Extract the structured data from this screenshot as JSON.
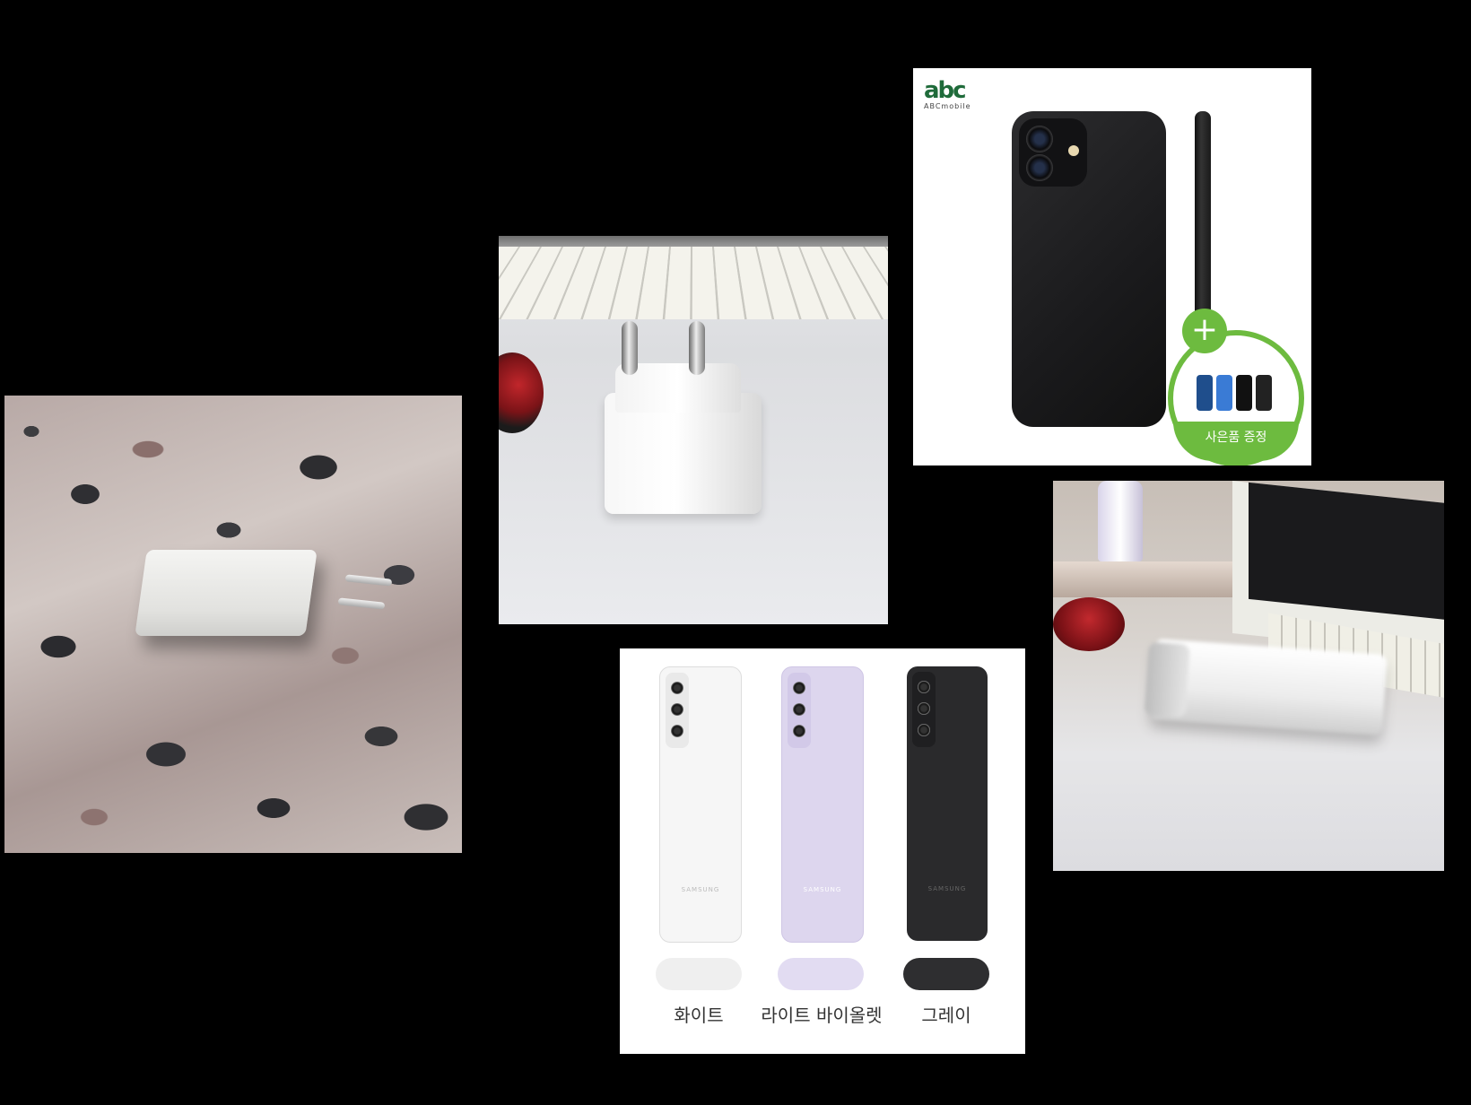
{
  "iphone_tile": {
    "logo_mark": "abc",
    "logo_text": "ABCmobile",
    "apple_glyph": "",
    "gift_label": "사은품 증정",
    "gift_plus": "+"
  },
  "samsung_tile": {
    "brand": "SAMSUNG",
    "colors": [
      {
        "label": "화이트",
        "hex": "#efefef",
        "body": "#f6f6f6"
      },
      {
        "label": "라이트 바이올렛",
        "hex": "#e2dcf2",
        "body": "#ddd6ee"
      },
      {
        "label": "그레이",
        "hex": "#2e2e30",
        "body": "#2a2a2c"
      }
    ]
  },
  "colors": {
    "background": "#000000",
    "gift_green": "#6dbb3f",
    "logo_green": "#1f6b3a"
  }
}
